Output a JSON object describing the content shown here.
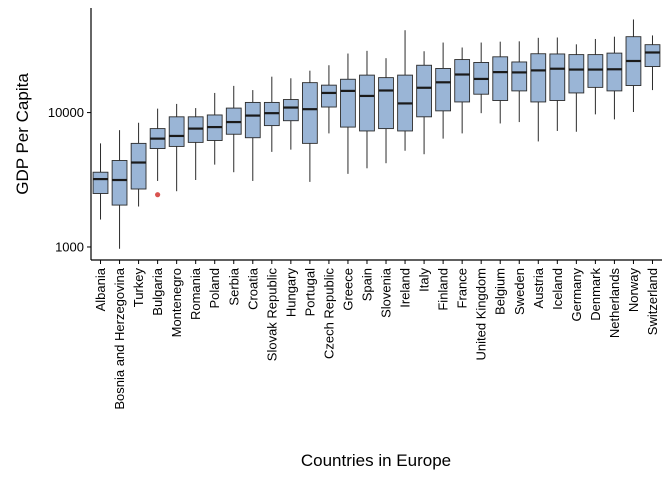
{
  "chart_data": {
    "type": "boxplot",
    "xlabel": "Countries in Europe",
    "ylabel": "GDP Per Capita",
    "y_scale": "log10",
    "ylim": [
      800,
      60000
    ],
    "y_ticks": [
      1000,
      10000
    ],
    "y_tick_labels": [
      "1000",
      "10000"
    ],
    "grid": false,
    "legend": "none",
    "colors": {
      "box_fill": "#9ab5d6",
      "box_edge": "#2b2b2b",
      "median": "#1a1a1a",
      "outlier": "#d9534f"
    },
    "categories": [
      "Albania",
      "Bosnia and Herzegovina",
      "Turkey",
      "Bulgaria",
      "Montenegro",
      "Romania",
      "Poland",
      "Serbia",
      "Croatia",
      "Slovak Republic",
      "Hungary",
      "Portugal",
      "Czech Republic",
      "Greece",
      "Spain",
      "Slovenia",
      "Ireland",
      "Italy",
      "Finland",
      "France",
      "United Kingdom",
      "Belgium",
      "Sweden",
      "Austria",
      "Iceland",
      "Germany",
      "Denmark",
      "Netherlands",
      "Norway",
      "Switzerland"
    ],
    "boxes": [
      {
        "category": "Albania",
        "whisker_low": 1600,
        "q1": 2500,
        "median": 3200,
        "q3": 3600,
        "whisker_high": 5900
      },
      {
        "category": "Bosnia and Herzegovina",
        "whisker_low": 970,
        "q1": 2050,
        "median": 3150,
        "q3": 4400,
        "whisker_high": 7400
      },
      {
        "category": "Turkey",
        "whisker_low": 2000,
        "q1": 2700,
        "median": 4250,
        "q3": 5900,
        "whisker_high": 8400
      },
      {
        "category": "Bulgaria",
        "whisker_low": 3100,
        "q1": 5400,
        "median": 6400,
        "q3": 7600,
        "whisker_high": 10700,
        "outliers": [
          2450
        ]
      },
      {
        "category": "Montenegro",
        "whisker_low": 2600,
        "q1": 5600,
        "median": 6700,
        "q3": 9300,
        "whisker_high": 11600
      },
      {
        "category": "Romania",
        "whisker_low": 3150,
        "q1": 6000,
        "median": 7600,
        "q3": 9300,
        "whisker_high": 10800
      },
      {
        "category": "Poland",
        "whisker_low": 4100,
        "q1": 6200,
        "median": 7800,
        "q3": 9600,
        "whisker_high": 14000
      },
      {
        "category": "Serbia",
        "whisker_low": 3600,
        "q1": 6900,
        "median": 8500,
        "q3": 10800,
        "whisker_high": 15800
      },
      {
        "category": "Croatia",
        "whisker_low": 3100,
        "q1": 6500,
        "median": 9500,
        "q3": 11900,
        "whisker_high": 14700
      },
      {
        "category": "Slovak Republic",
        "whisker_low": 5100,
        "q1": 8000,
        "median": 9900,
        "q3": 11900,
        "whisker_high": 18500
      },
      {
        "category": "Hungary",
        "whisker_low": 5300,
        "q1": 8700,
        "median": 10900,
        "q3": 12500,
        "whisker_high": 18000
      },
      {
        "category": "Portugal",
        "whisker_low": 3050,
        "q1": 5900,
        "median": 10600,
        "q3": 16700,
        "whisker_high": 20500
      },
      {
        "category": "Czech Republic",
        "whisker_low": 7000,
        "q1": 11000,
        "median": 14000,
        "q3": 16000,
        "whisker_high": 22500
      },
      {
        "category": "Greece",
        "whisker_low": 3500,
        "q1": 7800,
        "median": 14500,
        "q3": 17700,
        "whisker_high": 27500
      },
      {
        "category": "Spain",
        "whisker_low": 3850,
        "q1": 7300,
        "median": 13300,
        "q3": 19000,
        "whisker_high": 28800
      },
      {
        "category": "Slovenia",
        "whisker_low": 4200,
        "q1": 7600,
        "median": 14600,
        "q3": 18200,
        "whisker_high": 25400
      },
      {
        "category": "Ireland",
        "whisker_low": 5200,
        "q1": 7300,
        "median": 11700,
        "q3": 19000,
        "whisker_high": 41000
      },
      {
        "category": "Italy",
        "whisker_low": 4900,
        "q1": 9300,
        "median": 15300,
        "q3": 22500,
        "whisker_high": 28600
      },
      {
        "category": "Finland",
        "whisker_low": 6400,
        "q1": 10300,
        "median": 16800,
        "q3": 21300,
        "whisker_high": 33200
      },
      {
        "category": "France",
        "whisker_low": 7000,
        "q1": 12000,
        "median": 19200,
        "q3": 24800,
        "whisker_high": 30500
      },
      {
        "category": "United Kingdom",
        "whisker_low": 9900,
        "q1": 13700,
        "median": 17800,
        "q3": 23600,
        "whisker_high": 33200
      },
      {
        "category": "Belgium",
        "whisker_low": 8300,
        "q1": 12300,
        "median": 20000,
        "q3": 26000,
        "whisker_high": 33700
      },
      {
        "category": "Sweden",
        "whisker_low": 8500,
        "q1": 14500,
        "median": 19900,
        "q3": 23800,
        "whisker_high": 33900
      },
      {
        "category": "Austria",
        "whisker_low": 6100,
        "q1": 12000,
        "median": 20600,
        "q3": 27400,
        "whisker_high": 36000
      },
      {
        "category": "Iceland",
        "whisker_low": 7300,
        "q1": 12300,
        "median": 21200,
        "q3": 27300,
        "whisker_high": 36200
      },
      {
        "category": "Germany",
        "whisker_low": 7200,
        "q1": 14000,
        "median": 20900,
        "q3": 27000,
        "whisker_high": 32200
      },
      {
        "category": "Denmark",
        "whisker_low": 9700,
        "q1": 15400,
        "median": 20900,
        "q3": 27000,
        "whisker_high": 35300
      },
      {
        "category": "Netherlands",
        "whisker_low": 8900,
        "q1": 14500,
        "median": 21000,
        "q3": 27700,
        "whisker_high": 36700
      },
      {
        "category": "Norway",
        "whisker_low": 10100,
        "q1": 15900,
        "median": 24200,
        "q3": 36700,
        "whisker_high": 49300
      },
      {
        "category": "Switzerland",
        "whisker_low": 14700,
        "q1": 22000,
        "median": 28000,
        "q3": 32000,
        "whisker_high": 37500
      }
    ]
  }
}
